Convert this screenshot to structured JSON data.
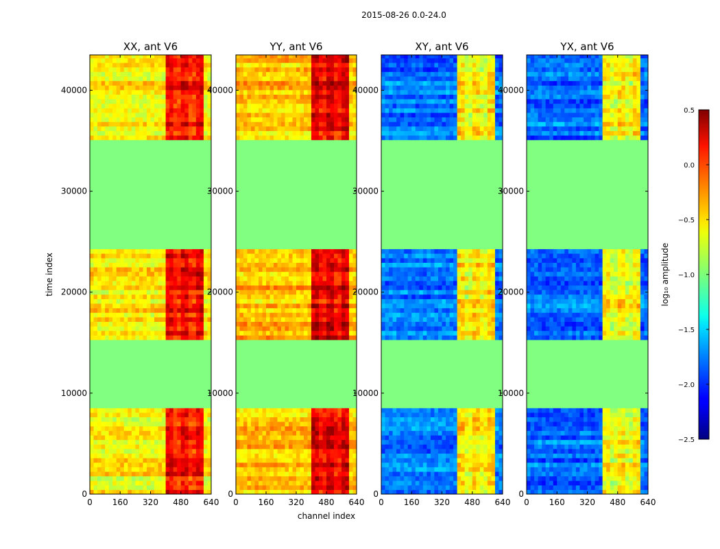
{
  "figure": {
    "suptitle": "2015-08-26 0.0-24.0",
    "xlabel": "channel index",
    "ylabel": "time index"
  },
  "colorbar": {
    "label": "log₁₀ amplitude",
    "ticks": [
      "0.5",
      "0.0",
      "−0.5",
      "−1.0",
      "−1.5",
      "−2.0",
      "−2.5"
    ],
    "tick_values": [
      0.5,
      0.0,
      -0.5,
      -1.0,
      -1.5,
      -2.0,
      -2.5
    ],
    "range": [
      -2.5,
      0.5
    ],
    "colormap": "jet"
  },
  "chart_data": [
    {
      "type": "heatmap",
      "title": "XX, ant V6",
      "xlabel": "channel index",
      "ylabel": "time index",
      "xlim": [
        0,
        640
      ],
      "ylim": [
        0,
        43500
      ],
      "x_ticks": [
        "0",
        "160",
        "320",
        "480",
        "640"
      ],
      "y_ticks": [
        "0",
        "10000",
        "20000",
        "30000",
        "40000"
      ],
      "flag_value": -1.0,
      "flagged_time_ranges": [
        [
          8200,
          15300
        ],
        [
          24000,
          35100
        ]
      ],
      "typical_value": -0.6,
      "hot_channel_range": [
        400,
        600
      ],
      "hot_value": 0.0
    },
    {
      "type": "heatmap",
      "title": "YY, ant V6",
      "xlabel": "channel index",
      "ylabel": "time index",
      "xlim": [
        0,
        640
      ],
      "ylim": [
        0,
        43500
      ],
      "x_ticks": [
        "0",
        "160",
        "320",
        "480",
        "640"
      ],
      "y_ticks": [
        "0",
        "10000",
        "20000",
        "30000",
        "40000"
      ],
      "flag_value": -1.0,
      "flagged_time_ranges": [
        [
          8200,
          15300
        ],
        [
          24000,
          35100
        ]
      ],
      "typical_value": -0.45,
      "hot_channel_range": [
        400,
        600
      ],
      "hot_value": 0.1
    },
    {
      "type": "heatmap",
      "title": "XY, ant V6",
      "xlabel": "channel index",
      "ylabel": "time index",
      "xlim": [
        0,
        640
      ],
      "ylim": [
        0,
        43500
      ],
      "x_ticks": [
        "0",
        "160",
        "320",
        "480",
        "640"
      ],
      "y_ticks": [
        "0",
        "10000",
        "20000",
        "30000",
        "40000"
      ],
      "flag_value": -1.0,
      "flagged_time_ranges": [
        [
          8200,
          15300
        ],
        [
          24000,
          35100
        ]
      ],
      "typical_value": -1.8,
      "hot_channel_range": [
        400,
        600
      ],
      "hot_value": -0.7
    },
    {
      "type": "heatmap",
      "title": "YX, ant V6",
      "xlabel": "channel index",
      "ylabel": "time index",
      "xlim": [
        0,
        640
      ],
      "ylim": [
        0,
        43500
      ],
      "x_ticks": [
        "0",
        "160",
        "320",
        "480",
        "640"
      ],
      "y_ticks": [
        "0",
        "10000",
        "20000",
        "30000",
        "40000"
      ],
      "flag_value": -1.0,
      "flagged_time_ranges": [
        [
          8200,
          15300
        ],
        [
          24000,
          35100
        ]
      ],
      "typical_value": -1.8,
      "hot_channel_range": [
        400,
        600
      ],
      "hot_value": -0.7
    }
  ]
}
